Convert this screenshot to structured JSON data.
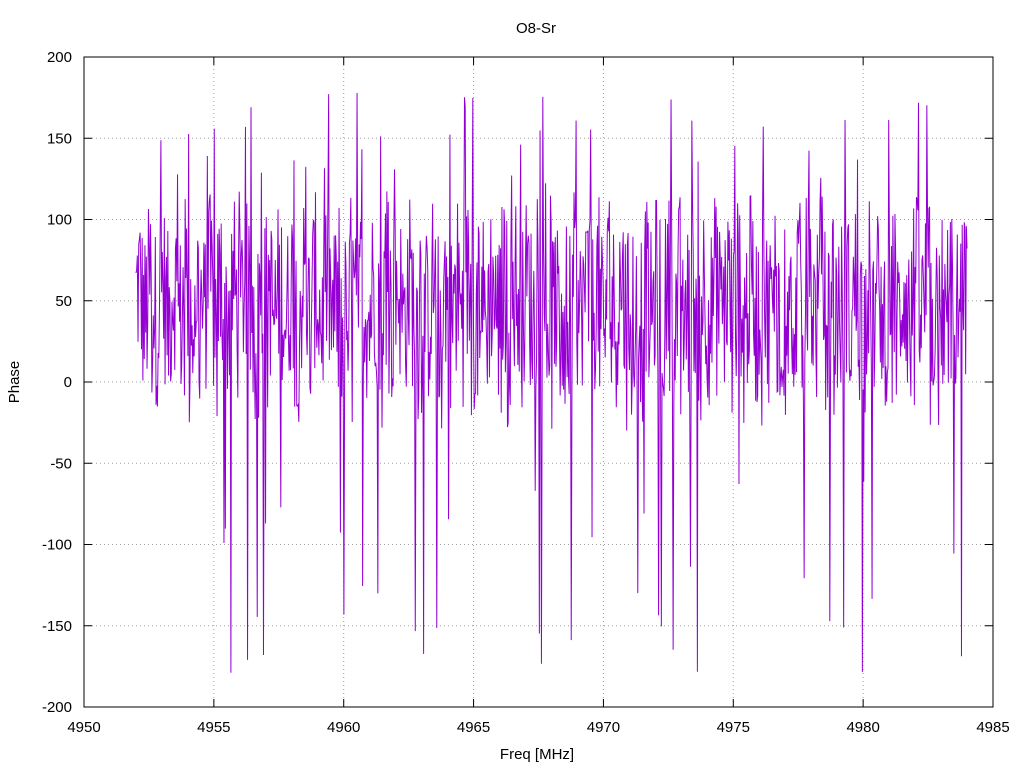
{
  "chart_data": {
    "type": "line",
    "title": "O8-Sr",
    "xlabel": "Freq [MHz]",
    "ylabel": "Phase",
    "xlim": [
      4950,
      4985
    ],
    "ylim": [
      -200,
      200
    ],
    "x_ticks": [
      4950,
      4955,
      4960,
      4965,
      4970,
      4975,
      4980,
      4985
    ],
    "y_ticks": [
      -200,
      -150,
      -100,
      -50,
      0,
      50,
      100,
      150,
      200
    ],
    "grid": true,
    "series": [
      {
        "color": "#9400d3",
        "x_start": 4952.0,
        "x_end": 4984.0,
        "points": 1200,
        "baseline": 50,
        "approx_range": [
          -180,
          180
        ]
      }
    ]
  }
}
